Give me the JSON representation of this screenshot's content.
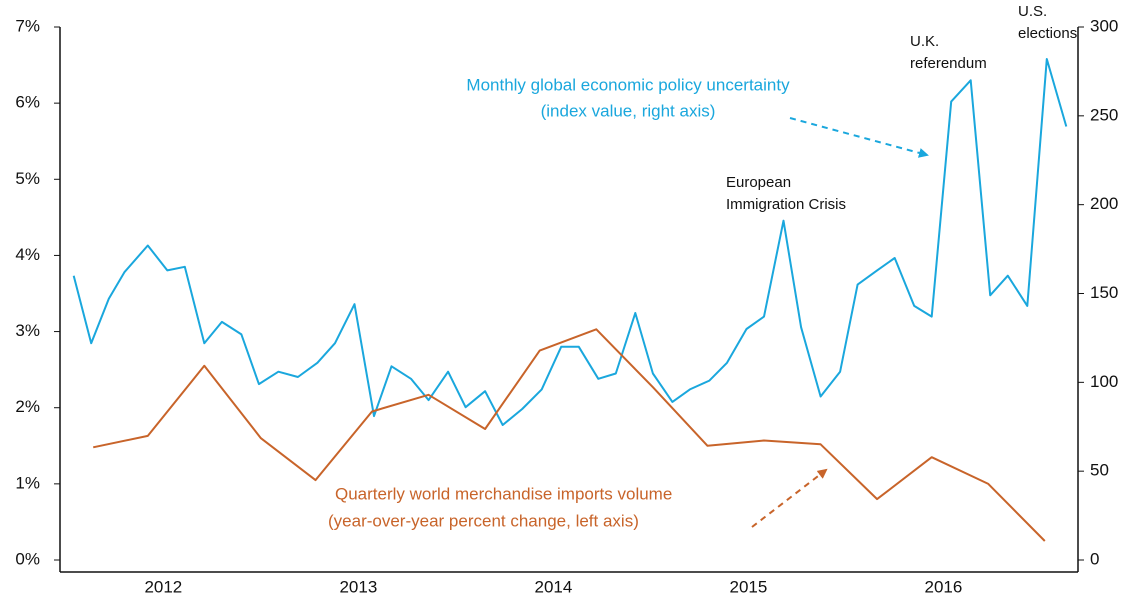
{
  "chart_data": {
    "type": "line",
    "xlim": [
      2011.97,
      2017.19
    ],
    "xticks": [
      {
        "value": 2012.5,
        "label": "2012"
      },
      {
        "value": 2013.5,
        "label": "2013"
      },
      {
        "value": 2014.5,
        "label": "2014"
      },
      {
        "value": 2015.5,
        "label": "2015"
      },
      {
        "value": 2016.5,
        "label": "2016"
      }
    ],
    "ylim": [
      0,
      7
    ],
    "yticks": [
      {
        "value": 0,
        "label": "0%"
      },
      {
        "value": 1,
        "label": "1%"
      },
      {
        "value": 2,
        "label": "2%"
      },
      {
        "value": 3,
        "label": "3%"
      },
      {
        "value": 4,
        "label": "4%"
      },
      {
        "value": 5,
        "label": "5%"
      },
      {
        "value": 6,
        "label": "6%"
      },
      {
        "value": 7,
        "label": "7%"
      }
    ],
    "y2lim": [
      0,
      300
    ],
    "y2ticks": [
      0,
      50,
      100,
      150,
      200,
      250,
      300
    ],
    "series": [
      {
        "name": [
          "Monthly global economic policy uncertainty",
          "(index value, right axis)"
        ],
        "color": "#1aa7dd",
        "axis": "y2",
        "x": [
          2012.04,
          2012.13,
          2012.22,
          2012.3,
          2012.42,
          2012.52,
          2012.61,
          2012.71,
          2012.8,
          2012.9,
          2012.99,
          2013.09,
          2013.19,
          2013.29,
          2013.38,
          2013.48,
          2013.58,
          2013.67,
          2013.77,
          2013.86,
          2013.96,
          2014.05,
          2014.15,
          2014.24,
          2014.34,
          2014.44,
          2014.54,
          2014.63,
          2014.73,
          2014.82,
          2014.92,
          2015.01,
          2015.11,
          2015.2,
          2015.3,
          2015.39,
          2015.49,
          2015.58,
          2015.68,
          2015.77,
          2015.87,
          2015.97,
          2016.06,
          2016.16,
          2016.25,
          2016.35,
          2016.44,
          2016.54,
          2016.64,
          2016.74,
          2016.83,
          2016.93,
          2017.03,
          2017.13
        ],
        "values": [
          160,
          122,
          147,
          162,
          177,
          163,
          165,
          122,
          134,
          127,
          99,
          106,
          103,
          111,
          122,
          144,
          81,
          109,
          102,
          90,
          106,
          86,
          95,
          76,
          85,
          96,
          120,
          120,
          102,
          105,
          139,
          105,
          89,
          96,
          101,
          111,
          130,
          137,
          191,
          131,
          92,
          106,
          155,
          163,
          170,
          143,
          137,
          258,
          270,
          149,
          160,
          143,
          282,
          244
        ]
      },
      {
        "name": [
          "Quarterly world merchandise imports volume",
          "(year-over-year percent change, left axis)"
        ],
        "color": "#c8642a",
        "axis": "y",
        "x": [
          2012.14,
          2012.42,
          2012.71,
          2013.0,
          2013.28,
          2013.57,
          2013.86,
          2014.15,
          2014.43,
          2014.72,
          2015.01,
          2015.29,
          2015.58,
          2015.87,
          2016.16,
          2016.44,
          2016.73,
          2017.02
        ],
        "values": [
          1.48,
          1.63,
          2.55,
          1.6,
          1.05,
          1.95,
          2.17,
          1.72,
          2.75,
          3.03,
          2.27,
          1.5,
          1.57,
          1.52,
          0.8,
          1.35,
          1.0,
          0.25
        ]
      }
    ],
    "annotations": [
      [
        "European",
        "Immigration Crisis"
      ],
      [
        "U.K.",
        "referendum"
      ],
      [
        "U.S.",
        "elections"
      ]
    ]
  }
}
